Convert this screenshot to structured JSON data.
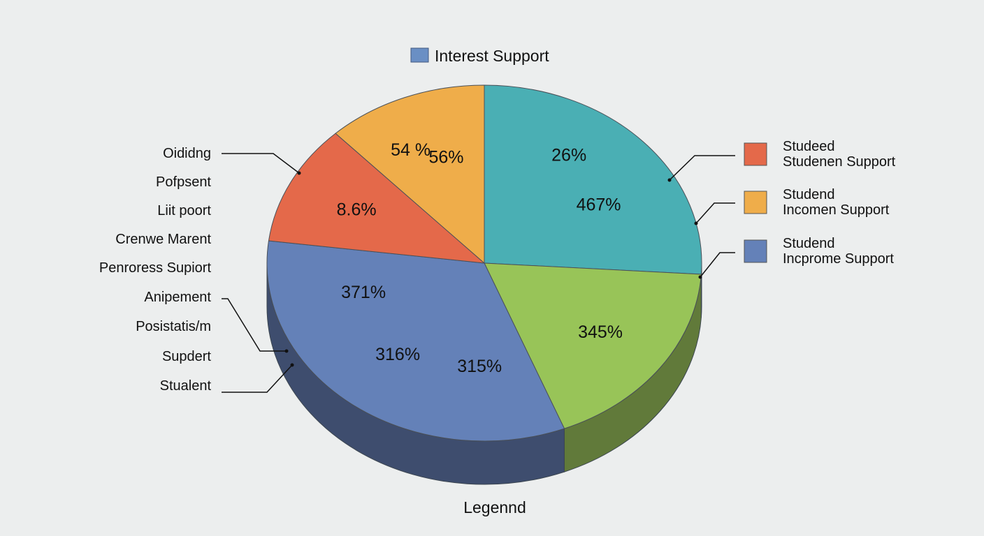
{
  "chart_data": {
    "type": "pie",
    "title": "",
    "top_legend": {
      "label": "Interest Support",
      "color": "#6a8fc4"
    },
    "slices": [
      {
        "value": 26,
        "color": "#4aafb4",
        "side": "#3a8a8e",
        "labels": [
          "26%",
          "467%"
        ]
      },
      {
        "value": 18,
        "color": "#98c458",
        "side": "#617a3a",
        "labels": [
          "345%"
        ]
      },
      {
        "value": 33,
        "color": "#6481b8",
        "side": "#3e4d6e",
        "labels": [
          "315%",
          "316%",
          "371%"
        ]
      },
      {
        "value": 11,
        "color": "#e4694a",
        "side": "#a2452e",
        "labels": [
          "8.6%"
        ]
      },
      {
        "value": 12,
        "color": "#efad4a",
        "side": "#b8823a",
        "labels": [
          "54 %",
          "56%"
        ]
      }
    ],
    "left_labels": [
      "Oididng",
      "Pofpsent",
      "Liit poort",
      "Crenwe Marent",
      "Penroress Supiort",
      "Anipement",
      "Posistatis/m",
      "Supdert",
      "Stualent"
    ],
    "right_legend": [
      {
        "line1": "Studeed",
        "line2": "Studenen Support",
        "color": "#e4694a"
      },
      {
        "line1": "Studend",
        "line2": "Incomen Support",
        "color": "#efad4a"
      },
      {
        "line1": "Studend",
        "line2": "Incprome Support",
        "color": "#6481b8"
      }
    ],
    "legend_title": "Legennd"
  }
}
